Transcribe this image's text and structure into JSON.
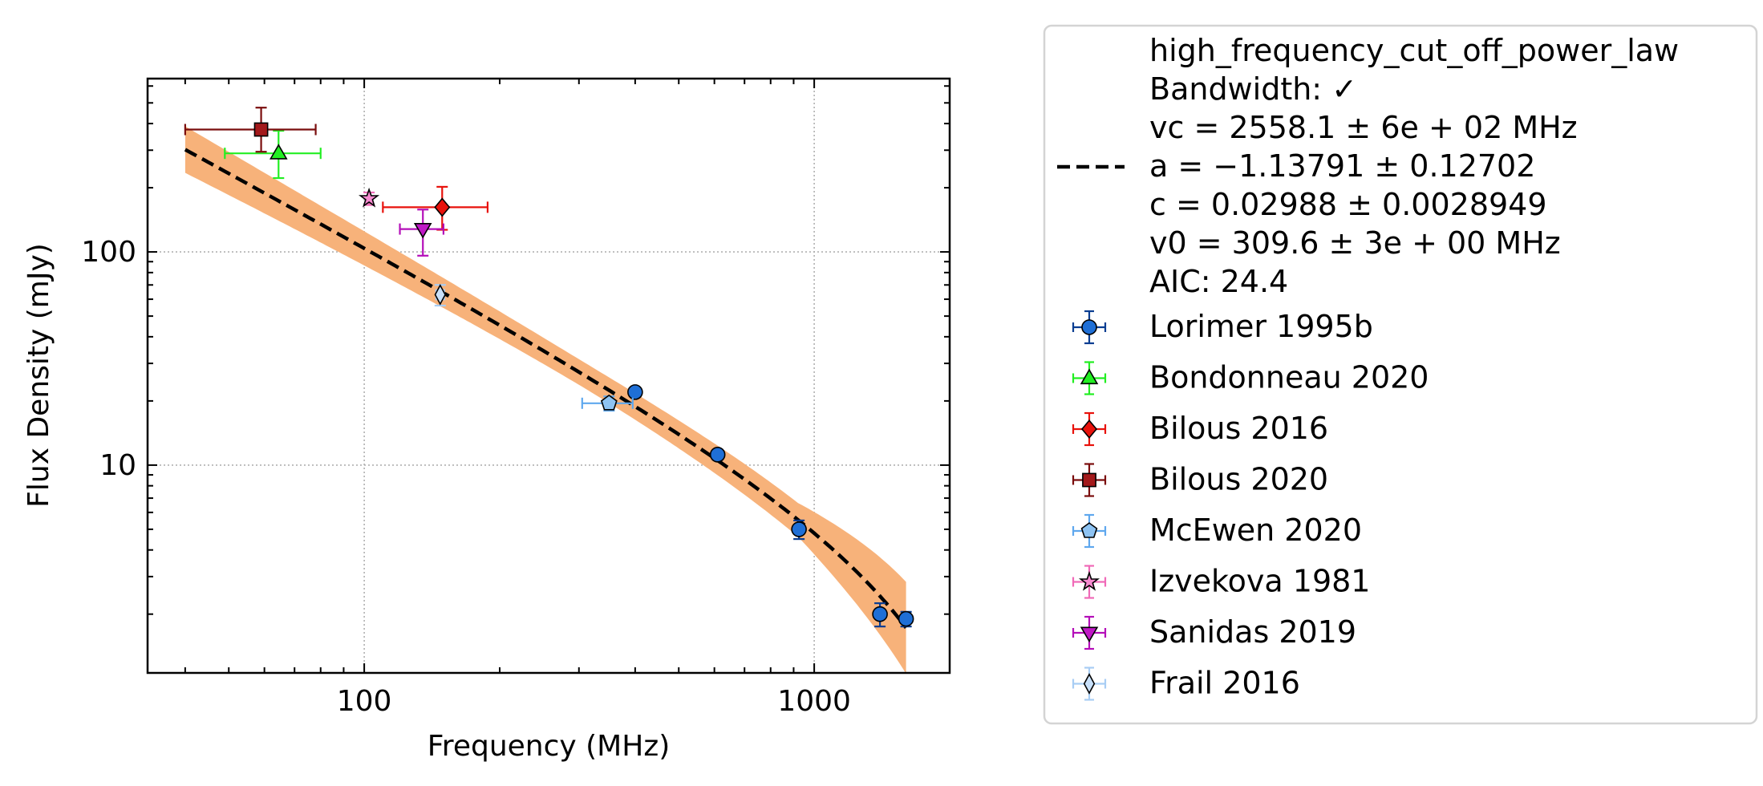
{
  "chart_data": {
    "type": "scatter",
    "xlabel": "Frequency (MHz)",
    "ylabel": "Flux Density (mJy)",
    "xscale": "log",
    "yscale": "log",
    "xlim": [
      33,
      2000
    ],
    "ylim": [
      1.06,
      650
    ],
    "xticks": [
      {
        "v": 100,
        "label": "100"
      },
      {
        "v": 1000,
        "label": "1000"
      }
    ],
    "yticks": [
      {
        "v": 10,
        "label": "10"
      },
      {
        "v": 100,
        "label": "100"
      }
    ],
    "grid": true,
    "legend_position": "outside-right",
    "fit": {
      "name": "high_frequency_cut_off_power_law",
      "legend_lines": [
        "high_frequency_cut_off_power_law",
        "Bandwidth: ✓",
        "vc = 2558.1 ± 6e + 02 MHz",
        "a = −1.13791 ± 0.12702",
        "c = 0.02988 ± 0.0028949",
        "v0 = 309.6 ± 3e + 00 MHz",
        "AIC: 24.4"
      ],
      "params": {
        "vc": 2558.1,
        "a": -1.13791,
        "c": 0.02988,
        "v0": 309.6
      },
      "x_range": [
        40,
        1600
      ],
      "band_color": "#f7b27a",
      "line_color": "#000000"
    },
    "series": [
      {
        "name": "Lorimer 1995b",
        "marker": "circle",
        "color": "#1f6fd6",
        "ecolor": "#0a3d91",
        "points": [
          {
            "x": 400,
            "y": 22,
            "yerr": [
              1.0,
              1.0
            ]
          },
          {
            "x": 610,
            "y": 11.2,
            "yerr": [
              0.6,
              0.6
            ]
          },
          {
            "x": 925,
            "y": 5.0,
            "yerr": [
              0.5,
              0.5
            ]
          },
          {
            "x": 1400,
            "y": 2.0,
            "yerr": [
              0.25,
              0.25
            ]
          },
          {
            "x": 1600,
            "y": 1.9,
            "yerr": [
              0.15,
              0.15
            ]
          }
        ]
      },
      {
        "name": "Bondonneau 2020",
        "marker": "triangle-up",
        "color": "#22ee22",
        "ecolor": "#22ee22",
        "points": [
          {
            "x": 64.5,
            "y": 290,
            "yerr": [
              68,
              80
            ],
            "xerr": [
              15.5,
              15.5
            ]
          }
        ]
      },
      {
        "name": "Bilous 2016",
        "marker": "diamond",
        "color": "#e8120c",
        "ecolor": "#e8120c",
        "points": [
          {
            "x": 149,
            "y": 162,
            "yerr": [
              35,
              40
            ],
            "xerr": [
              39,
              39
            ]
          }
        ]
      },
      {
        "name": "Bilous 2020",
        "marker": "square",
        "color": "#a3191b",
        "ecolor": "#7a0d0d",
        "points": [
          {
            "x": 59,
            "y": 375,
            "yerr": [
              80,
              100
            ],
            "xerr": [
              19,
              19
            ]
          }
        ]
      },
      {
        "name": "McEwen 2020",
        "marker": "pentagon",
        "color": "#8ec3f2",
        "ecolor": "#5fa8ee",
        "points": [
          {
            "x": 350,
            "y": 19.5,
            "yerr": [
              1.5,
              1.5
            ],
            "xerr": [
              45,
              45
            ]
          }
        ]
      },
      {
        "name": "Izvekova 1981",
        "marker": "star",
        "color": "#f78ad0",
        "ecolor": "#f06ab8",
        "points": [
          {
            "x": 102.5,
            "y": 178,
            "yerr": [
              12,
              12
            ]
          }
        ]
      },
      {
        "name": "Sanidas 2019",
        "marker": "triangle-down",
        "color": "#c018c6",
        "ecolor": "#b40fb9",
        "points": [
          {
            "x": 135,
            "y": 128,
            "yerr": [
              32,
              30
            ],
            "xerr": [
              15,
              15
            ]
          }
        ]
      },
      {
        "name": "Frail 2016",
        "marker": "thin-diamond",
        "color": "#c8e0fa",
        "ecolor": "#a8cdf4",
        "points": [
          {
            "x": 147.5,
            "y": 63,
            "yerr": [
              7,
              7
            ],
            "xerr": [
              3,
              3
            ]
          }
        ]
      }
    ]
  }
}
